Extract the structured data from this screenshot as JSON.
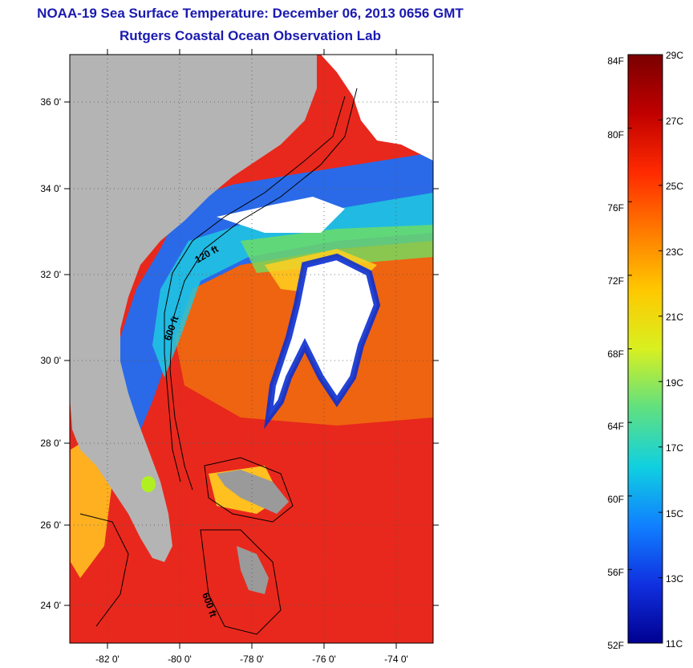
{
  "title": {
    "line1": "NOAA-19 Sea Surface Temperature:  December 06, 2013 0656 GMT",
    "line2": "Rutgers Coastal Ocean Observation Lab"
  },
  "map": {
    "lat_ticks": [
      "36 0'",
      "34 0'",
      "32 0'",
      "30 0'",
      "28 0'",
      "26 0'",
      "24 0'"
    ],
    "lon_ticks": [
      "-82 0'",
      "-80 0'",
      "-78 0'",
      "-76 0'",
      "-74 0'"
    ],
    "contour_labels": [
      "600 ft",
      "600 ft",
      "120 ft"
    ],
    "colors": {
      "land": "#b4b4b4",
      "cloud": "#ffffff",
      "warm": "#e8281c",
      "cold": "#0a2fd0"
    }
  },
  "colorbar": {
    "fahrenheit_labels": [
      "84F",
      "80F",
      "76F",
      "72F",
      "68F",
      "64F",
      "60F",
      "56F",
      "52F"
    ],
    "celsius_labels": [
      "29C",
      "27C",
      "25C",
      "23C",
      "21C",
      "19C",
      "17C",
      "15C",
      "13C",
      "11C"
    ],
    "stops": [
      "#7a0000",
      "#c00000",
      "#ff2a00",
      "#ff7a00",
      "#ffc800",
      "#d8f020",
      "#60e080",
      "#10d0e0",
      "#1080ff",
      "#1030e0",
      "#000090"
    ]
  }
}
